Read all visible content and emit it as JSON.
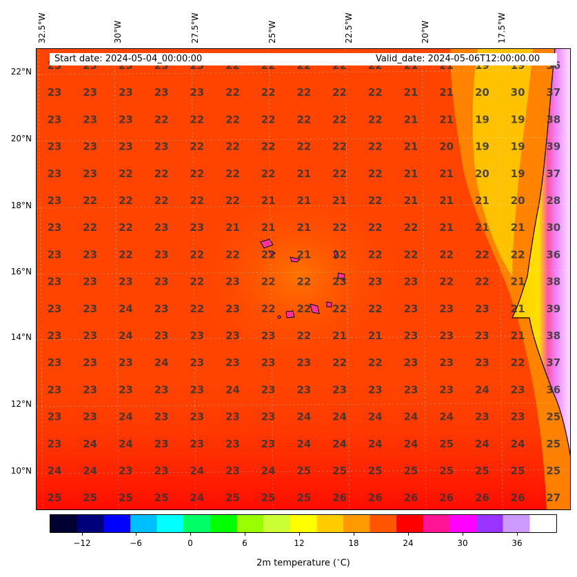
{
  "map": {
    "start_date": "Start date: 2024-05-04_00:00:00",
    "valid_date": "Valid_date: 2024-05-06T12:00:00.00",
    "lon_labels": [
      "32.5°W",
      "30°W",
      "27.5°W",
      "25°W",
      "22.5°W",
      "20°W",
      "17.5°W"
    ],
    "lat_labels": [
      "22°N",
      "20°N",
      "18°N",
      "16°N",
      "14°N",
      "12°N",
      "10°N"
    ],
    "temperature_grid": [
      [
        "23",
        "23",
        "23",
        "23",
        "23",
        "22",
        "22",
        "22",
        "22",
        "22",
        "21",
        "21",
        "19",
        "19",
        "36"
      ],
      [
        "23",
        "23",
        "23",
        "23",
        "23",
        "22",
        "22",
        "22",
        "22",
        "22",
        "21",
        "21",
        "20",
        "30",
        "37"
      ],
      [
        "23",
        "23",
        "23",
        "22",
        "22",
        "22",
        "22",
        "22",
        "22",
        "22",
        "21",
        "21",
        "19",
        "19",
        "38"
      ],
      [
        "23",
        "23",
        "23",
        "23",
        "22",
        "22",
        "22",
        "22",
        "22",
        "22",
        "21",
        "20",
        "19",
        "19",
        "39"
      ],
      [
        "23",
        "23",
        "22",
        "22",
        "22",
        "22",
        "22",
        "21",
        "22",
        "22",
        "21",
        "21",
        "20",
        "19",
        "37"
      ],
      [
        "23",
        "22",
        "22",
        "22",
        "22",
        "22",
        "21",
        "21",
        "21",
        "22",
        "21",
        "21",
        "21",
        "20",
        "28"
      ],
      [
        "23",
        "22",
        "22",
        "23",
        "23",
        "21",
        "21",
        "21",
        "22",
        "22",
        "22",
        "21",
        "21",
        "21",
        "30"
      ],
      [
        "23",
        "23",
        "22",
        "23",
        "22",
        "22",
        "22",
        "21",
        "22",
        "22",
        "22",
        "22",
        "22",
        "22",
        "36"
      ],
      [
        "23",
        "23",
        "23",
        "23",
        "22",
        "23",
        "22",
        "22",
        "23",
        "23",
        "23",
        "22",
        "22",
        "21",
        "38"
      ],
      [
        "23",
        "23",
        "24",
        "23",
        "22",
        "23",
        "22",
        "22",
        "22",
        "22",
        "23",
        "23",
        "23",
        "21",
        "39"
      ],
      [
        "23",
        "23",
        "24",
        "23",
        "23",
        "23",
        "23",
        "22",
        "21",
        "21",
        "23",
        "23",
        "23",
        "21",
        "38"
      ],
      [
        "23",
        "23",
        "23",
        "24",
        "23",
        "23",
        "23",
        "23",
        "22",
        "22",
        "23",
        "23",
        "23",
        "22",
        "37"
      ],
      [
        "23",
        "23",
        "23",
        "23",
        "23",
        "24",
        "23",
        "23",
        "23",
        "23",
        "23",
        "23",
        "24",
        "23",
        "36"
      ],
      [
        "23",
        "23",
        "24",
        "23",
        "23",
        "23",
        "23",
        "24",
        "24",
        "24",
        "24",
        "24",
        "23",
        "23",
        "25"
      ],
      [
        "23",
        "24",
        "24",
        "23",
        "23",
        "23",
        "23",
        "24",
        "24",
        "24",
        "24",
        "25",
        "24",
        "24",
        "25"
      ],
      [
        "24",
        "24",
        "23",
        "23",
        "24",
        "23",
        "24",
        "25",
        "25",
        "25",
        "25",
        "25",
        "25",
        "25",
        "25"
      ],
      [
        "25",
        "25",
        "25",
        "25",
        "24",
        "25",
        "25",
        "25",
        "26",
        "26",
        "26",
        "26",
        "26",
        "26",
        "27"
      ]
    ]
  },
  "colorbar": {
    "title": "2m temperature ($^\\circ$C)",
    "tick_labels": [
      "−12",
      "−6",
      "0",
      "6",
      "12",
      "18",
      "24",
      "30",
      "36"
    ],
    "range": [
      -16,
      40
    ],
    "stops": [
      "#000033",
      "#00007a",
      "#0000ff",
      "#00bfff",
      "#00ffff",
      "#00ff66",
      "#00ff00",
      "#99ff00",
      "#ccff33",
      "#ffff00",
      "#ffcc00",
      "#ff9900",
      "#ff5500",
      "#ff0000",
      "#ff1493",
      "#ff00ff",
      "#9933ff",
      "#cc99ff",
      "#ffffff"
    ]
  }
}
